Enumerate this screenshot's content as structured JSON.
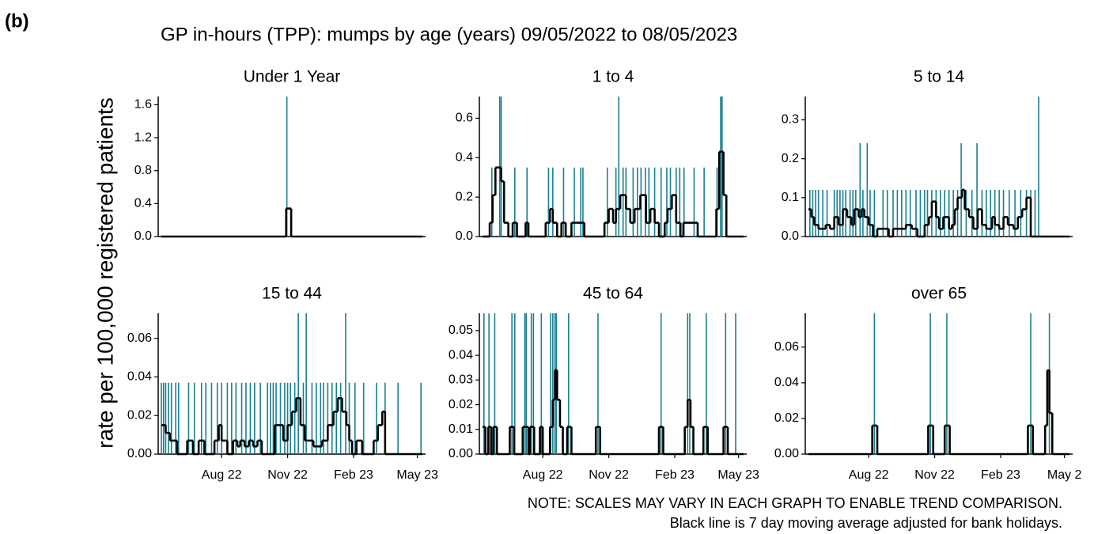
{
  "label": "(b)",
  "title": "GP in-hours (TPP): mumps by age (years) 09/05/2022 to 08/05/2023",
  "y_label": "rate per 100,000 registered patients",
  "notes": [
    "NOTE: SCALES MAY VARY IN EACH GRAPH TO ENABLE TREND COMPARISON.",
    "Black line is 7 day moving average adjusted for bank holidays."
  ],
  "chart_data": [
    {
      "type": "line",
      "title": "Under 1 Year",
      "xlim": [
        0,
        364
      ],
      "ylim": [
        0,
        1.7
      ],
      "yticks": [
        {
          "value": 0,
          "label": "0.0"
        },
        0.4,
        0.8,
        1.2,
        1.6
      ],
      "series": [
        {
          "type": "spike",
          "color": "#1b7f8f",
          "x": [
            175
          ],
          "values": [
            1.7
          ]
        },
        {
          "type": "step",
          "color": "#000000",
          "x": [
            0,
            174,
            181,
            364
          ],
          "values": [
            0,
            0.34,
            0,
            0
          ]
        }
      ]
    },
    {
      "type": "line",
      "title": "1 to 4",
      "xlim": [
        0,
        364
      ],
      "ylim": [
        0,
        0.71
      ],
      "yticks": [
        {
          "value": 0,
          "label": "0.0"
        },
        0.2,
        0.4,
        0.6
      ],
      "series": [
        {
          "type": "spike",
          "color": "#1b7f8f",
          "x": [
            13,
            24,
            26,
            45,
            62,
            92,
            98,
            113,
            128,
            137,
            140,
            174,
            186,
            190,
            196,
            200,
            210,
            216,
            221,
            227,
            232,
            240,
            249,
            257,
            262,
            270,
            275,
            281,
            295,
            309,
            327,
            332,
            334
          ],
          "values": [
            0.35,
            0.71,
            0.71,
            0.35,
            0.35,
            0.35,
            0.35,
            0.35,
            0.35,
            0.35,
            0.35,
            0.35,
            0.35,
            0.71,
            0.35,
            0.35,
            0.35,
            0.35,
            0.35,
            0.35,
            0.35,
            0.35,
            0.35,
            0.35,
            0.35,
            0.35,
            0.35,
            0.35,
            0.35,
            0.35,
            0.35,
            0.71,
            0.71
          ]
        },
        {
          "type": "step",
          "color": "#000000",
          "x": [
            0,
            10,
            14,
            18,
            26,
            30,
            36,
            42,
            48,
            60,
            64,
            88,
            94,
            98,
            104,
            110,
            116,
            124,
            132,
            142,
            170,
            176,
            182,
            186,
            192,
            200,
            206,
            212,
            220,
            228,
            234,
            240,
            246,
            254,
            258,
            264,
            270,
            276,
            280,
            300,
            326,
            330,
            336,
            340,
            364
          ],
          "values": [
            0,
            0.07,
            0.21,
            0.35,
            0.28,
            0.07,
            0,
            0.07,
            0,
            0.07,
            0,
            0.07,
            0.14,
            0.07,
            0,
            0.07,
            0,
            0.07,
            0.07,
            0,
            0.07,
            0.14,
            0.07,
            0.14,
            0.21,
            0.14,
            0.07,
            0.14,
            0.21,
            0.07,
            0.14,
            0.07,
            0,
            0.07,
            0.14,
            0.21,
            0.07,
            0,
            0.07,
            0,
            0.14,
            0.43,
            0.21,
            0,
            0
          ]
        }
      ]
    },
    {
      "type": "line",
      "title": "5 to 14",
      "xlim": [
        0,
        364
      ],
      "ylim": [
        0,
        0.36
      ],
      "yticks": [
        {
          "value": 0,
          "label": "0.0"
        },
        0.1,
        0.2,
        0.3
      ],
      "series": [
        {
          "type": "spike",
          "color": "#1b7f8f",
          "x": [
            2,
            6,
            10,
            14,
            20,
            26,
            36,
            40,
            44,
            48,
            52,
            58,
            62,
            66,
            72,
            76,
            82,
            86,
            92,
            104,
            110,
            118,
            124,
            130,
            136,
            142,
            150,
            156,
            162,
            166,
            172,
            178,
            184,
            190,
            196,
            202,
            208,
            213,
            220,
            228,
            235,
            242,
            248,
            254,
            260,
            266,
            272,
            280,
            288,
            296,
            304,
            310,
            316,
            321
          ],
          "values": [
            0.12,
            0.12,
            0.12,
            0.12,
            0.12,
            0.12,
            0.12,
            0.12,
            0.12,
            0.12,
            0.12,
            0.12,
            0.12,
            0.12,
            0.24,
            0.12,
            0.24,
            0.12,
            0.12,
            0.12,
            0.12,
            0.12,
            0.12,
            0.12,
            0.12,
            0.12,
            0.12,
            0.12,
            0.12,
            0.12,
            0.12,
            0.12,
            0.12,
            0.12,
            0.12,
            0.12,
            0.12,
            0.24,
            0.12,
            0.12,
            0.24,
            0.12,
            0.12,
            0.12,
            0.12,
            0.12,
            0.12,
            0.12,
            0.12,
            0.12,
            0.12,
            0.12,
            0.12,
            0.36
          ]
        },
        {
          "type": "step",
          "color": "#000000",
          "x": [
            0,
            4,
            8,
            14,
            24,
            30,
            36,
            42,
            48,
            54,
            60,
            64,
            70,
            74,
            78,
            84,
            90,
            96,
            108,
            112,
            118,
            128,
            136,
            144,
            152,
            162,
            168,
            172,
            178,
            182,
            188,
            196,
            200,
            204,
            208,
            214,
            218,
            224,
            230,
            236,
            242,
            248,
            256,
            260,
            266,
            272,
            278,
            286,
            292,
            298,
            304,
            310,
            364
          ],
          "values": [
            0.07,
            0.05,
            0.03,
            0.02,
            0.03,
            0.02,
            0.05,
            0.03,
            0.07,
            0.05,
            0.03,
            0.07,
            0.05,
            0.07,
            0.05,
            0.03,
            0,
            0.02,
            0.02,
            0,
            0.02,
            0.02,
            0.03,
            0.02,
            0,
            0.03,
            0.05,
            0.09,
            0.05,
            0.02,
            0.05,
            0.02,
            0.03,
            0.07,
            0.1,
            0.12,
            0.07,
            0.05,
            0.02,
            0.07,
            0.03,
            0.02,
            0.05,
            0.03,
            0.02,
            0.05,
            0.03,
            0.02,
            0.05,
            0.07,
            0.1,
            0,
            0
          ]
        }
      ]
    },
    {
      "type": "line",
      "title": "15 to 44",
      "xlim": [
        0,
        364
      ],
      "ylim": [
        0,
        0.073
      ],
      "yticks": [
        {
          "value": 0,
          "label": "0.00"
        },
        0.02,
        0.04,
        0.06
      ],
      "xticks": [
        {
          "value": 84,
          "label": "Aug 22"
        },
        {
          "value": 176,
          "label": "Nov 22"
        },
        {
          "value": 268,
          "label": "Feb 23"
        },
        {
          "value": 357,
          "label": "May 23"
        }
      ],
      "series": [
        {
          "type": "spike",
          "color": "#1b7f8f",
          "x": [
            0,
            3,
            6,
            10,
            14,
            20,
            24,
            38,
            46,
            56,
            62,
            70,
            78,
            84,
            92,
            98,
            104,
            112,
            118,
            124,
            130,
            138,
            148,
            152,
            156,
            160,
            166,
            172,
            176,
            180,
            186,
            191,
            198,
            202,
            210,
            216,
            222,
            226,
            232,
            238,
            244,
            250,
            257,
            262,
            270,
            282,
            300,
            312,
            330,
            362
          ],
          "values": [
            0.037,
            0.037,
            0.037,
            0.037,
            0.037,
            0.037,
            0.037,
            0.037,
            0.037,
            0.037,
            0.037,
            0.037,
            0.037,
            0.037,
            0.037,
            0.037,
            0.037,
            0.037,
            0.037,
            0.037,
            0.037,
            0.037,
            0.037,
            0.037,
            0.037,
            0.037,
            0.037,
            0.037,
            0.037,
            0.037,
            0.037,
            0.073,
            0.037,
            0.073,
            0.037,
            0.037,
            0.037,
            0.037,
            0.037,
            0.037,
            0.037,
            0.037,
            0.073,
            0.037,
            0.037,
            0.037,
            0.037,
            0.037,
            0.037,
            0.037
          ]
        },
        {
          "type": "step",
          "color": "#000000",
          "x": [
            0,
            6,
            12,
            22,
            36,
            44,
            52,
            60,
            74,
            80,
            84,
            92,
            100,
            106,
            110,
            116,
            122,
            128,
            134,
            140,
            158,
            170,
            176,
            182,
            188,
            194,
            200,
            212,
            224,
            232,
            240,
            246,
            252,
            258,
            262,
            266,
            272,
            280,
            296,
            302,
            308,
            312,
            364
          ],
          "values": [
            0.015,
            0.011,
            0.007,
            0,
            0.007,
            0,
            0.007,
            0,
            0.007,
            0.015,
            0.007,
            0,
            0.007,
            0.004,
            0.007,
            0.004,
            0.007,
            0.004,
            0.007,
            0,
            0.015,
            0.007,
            0.015,
            0.022,
            0.029,
            0.015,
            0.007,
            0.004,
            0.007,
            0.015,
            0.022,
            0.029,
            0.022,
            0.015,
            0.007,
            0,
            0.007,
            0,
            0.007,
            0.015,
            0.022,
            0,
            0
          ]
        }
      ]
    },
    {
      "type": "line",
      "title": "45 to 64",
      "xlim": [
        0,
        364
      ],
      "ylim": [
        0,
        0.057
      ],
      "yticks": [
        {
          "value": 0,
          "label": "0.00"
        },
        0.01,
        0.02,
        0.03,
        0.04,
        0.05
      ],
      "xticks": [
        {
          "value": 84,
          "label": "Aug 22"
        },
        {
          "value": 176,
          "label": "Nov 22"
        },
        {
          "value": 268,
          "label": "Feb 23"
        },
        {
          "value": 357,
          "label": "May 23"
        }
      ],
      "series": [
        {
          "type": "spike",
          "color": "#1b7f8f",
          "x": [
            2,
            9,
            17,
            41,
            45,
            59,
            61,
            68,
            71,
            82,
            95,
            98,
            101,
            103,
            120,
            161,
            249,
            286,
            289,
            312,
            339,
            353
          ],
          "values": [
            0.057,
            0.057,
            0.057,
            0.057,
            0.057,
            0.057,
            0.057,
            0.057,
            0.057,
            0.057,
            0.057,
            0.057,
            0.057,
            0.057,
            0.057,
            0.057,
            0.057,
            0.057,
            0.057,
            0.057,
            0.057,
            0.057
          ]
        },
        {
          "type": "step",
          "color": "#000000",
          "x": [
            0,
            4,
            8,
            12,
            15,
            20,
            38,
            44,
            56,
            64,
            66,
            72,
            80,
            84,
            94,
            98,
            101,
            104,
            108,
            112,
            118,
            124,
            158,
            164,
            246,
            252,
            282,
            286,
            290,
            294,
            308,
            314,
            336,
            342,
            364
          ],
          "values": [
            0.011,
            0,
            0.011,
            0,
            0.011,
            0,
            0.011,
            0,
            0.011,
            0,
            0.011,
            0,
            0.011,
            0,
            0.011,
            0.022,
            0.034,
            0.022,
            0.011,
            0,
            0.011,
            0,
            0.011,
            0,
            0.011,
            0,
            0.011,
            0.022,
            0.011,
            0,
            0.011,
            0,
            0.011,
            0,
            0
          ]
        }
      ]
    },
    {
      "type": "line",
      "title": "over 65",
      "xlim": [
        0,
        364
      ],
      "ylim": [
        0,
        0.079
      ],
      "yticks": [
        {
          "value": 0,
          "label": "0.00"
        },
        0.02,
        0.04,
        0.06
      ],
      "xticks": [
        {
          "value": 84,
          "label": "Aug 22"
        },
        {
          "value": 176,
          "label": "Nov 22"
        },
        {
          "value": 268,
          "label": "Feb 23"
        },
        {
          "value": 357,
          "label": "May 2"
        }
      ],
      "series": [
        {
          "type": "spike",
          "color": "#1b7f8f",
          "x": [
            92,
            170,
            193,
            310,
            336
          ],
          "values": [
            0.079,
            0.079,
            0.079,
            0.079,
            0.079
          ]
        },
        {
          "type": "step",
          "color": "#000000",
          "x": [
            0,
            89,
            96,
            167,
            174,
            190,
            197,
            306,
            313,
            330,
            333,
            336,
            340,
            364
          ],
          "values": [
            0,
            0.016,
            0,
            0.016,
            0,
            0.016,
            0,
            0.016,
            0,
            0.016,
            0.047,
            0.023,
            0,
            0
          ]
        }
      ]
    }
  ]
}
